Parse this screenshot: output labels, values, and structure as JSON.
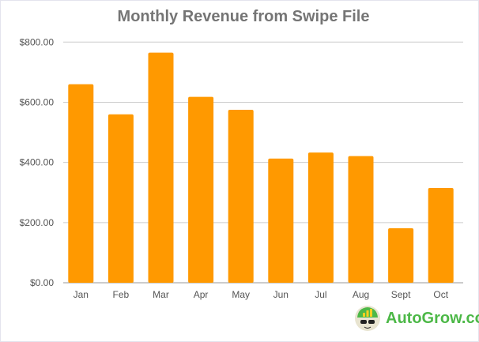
{
  "chart_data": {
    "type": "bar",
    "title": "Monthly Revenue from Swipe File",
    "xlabel": "",
    "ylabel": "",
    "categories": [
      "Jan",
      "Feb",
      "Mar",
      "Apr",
      "May",
      "Jun",
      "Jul",
      "Aug",
      "Sept",
      "Oct"
    ],
    "values": [
      660,
      560,
      765,
      618,
      575,
      413,
      433,
      421,
      181,
      315
    ],
    "ylim": [
      0,
      800
    ],
    "yticks": [
      0,
      200,
      400,
      600,
      800
    ],
    "ytick_labels": [
      "$0.00",
      "$200.00",
      "$400.00",
      "$600.00",
      "$800.00"
    ],
    "grid": true,
    "legend": "none",
    "bar_color": "#ff9900"
  },
  "logo": {
    "text": "AutoGrow.co",
    "color": "#4cb847"
  }
}
